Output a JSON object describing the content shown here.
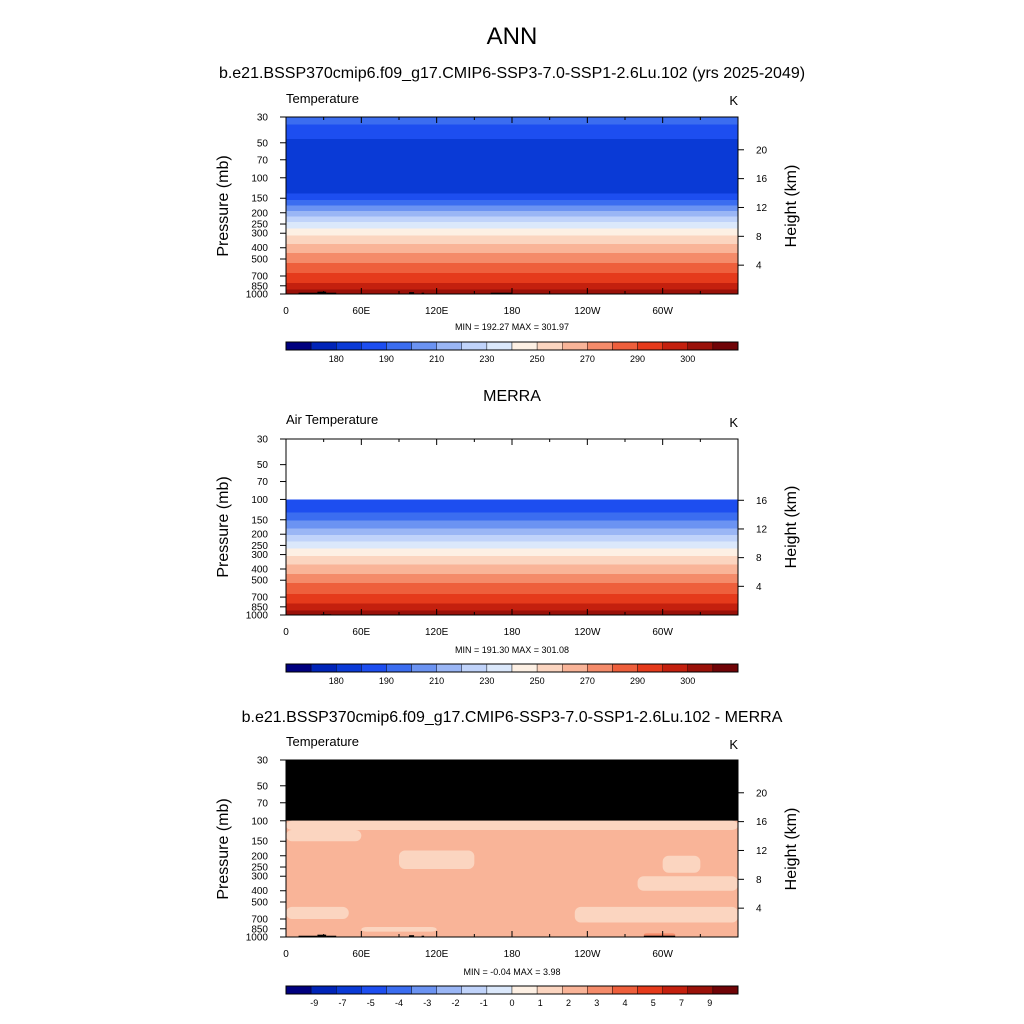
{
  "page": {
    "title": "ANN"
  },
  "colors": {
    "palette": [
      "#00007f",
      "#0024b8",
      "#0a3ad6",
      "#1d4ef0",
      "#3b6df0",
      "#6b93f2",
      "#9ab6f5",
      "#c0d3fa",
      "#dbe8fb",
      "#fdf0e4",
      "#fbd5c0",
      "#f9b498",
      "#f48b6a",
      "#ee5f3c",
      "#e53a1b",
      "#c4200e",
      "#9a1109",
      "#700407"
    ],
    "masked": "#000000",
    "axis": "#000000"
  },
  "chart_data": [
    {
      "type": "contour",
      "panel_title": "b.e21.BSSP370cmip6.f09_g17.CMIP6-SSP3-7.0-SSP1-2.6Lu.102 (yrs 2025-2049)",
      "left_label": "Temperature",
      "units": "K",
      "ylabel": "Pressure (mb)",
      "ylabel2": "Height (km)",
      "x_ticks": [
        "0",
        "60E",
        "120E",
        "180",
        "120W",
        "60W"
      ],
      "x_range": [
        0,
        360
      ],
      "p_ticks": [
        "30",
        "50",
        "70",
        "100",
        "150",
        "200",
        "250",
        "300",
        "400",
        "500",
        "700",
        "850",
        "1000"
      ],
      "p_range": [
        30,
        1000
      ],
      "height_ticks": [
        "4",
        "8",
        "12",
        "16",
        "20"
      ],
      "data_top": 30,
      "stats": "MIN = 192.27  MAX = 301.97",
      "level_profile": [
        {
          "p": 30,
          "lev": 4
        },
        {
          "p": 40,
          "lev": 3
        },
        {
          "p": 55,
          "lev": 2
        },
        {
          "p": 125,
          "lev": 2
        },
        {
          "p": 145,
          "lev": 3
        },
        {
          "p": 165,
          "lev": 4
        },
        {
          "p": 185,
          "lev": 5
        },
        {
          "p": 205,
          "lev": 6
        },
        {
          "p": 225,
          "lev": 7
        },
        {
          "p": 255,
          "lev": 8
        },
        {
          "p": 290,
          "lev": 9
        },
        {
          "p": 340,
          "lev": 10
        },
        {
          "p": 410,
          "lev": 11
        },
        {
          "p": 490,
          "lev": 12
        },
        {
          "p": 600,
          "lev": 13
        },
        {
          "p": 740,
          "lev": 14
        },
        {
          "p": 880,
          "lev": 15
        },
        {
          "p": 960,
          "lev": 16
        },
        {
          "p": 1000,
          "lev": 16
        }
      ],
      "terrain": [
        [
          10,
          25,
          975
        ],
        [
          25,
          32,
          955
        ],
        [
          32,
          40,
          975
        ],
        [
          98,
          102,
          965
        ],
        [
          108,
          110,
          975
        ],
        [
          163,
          180,
          975
        ]
      ],
      "colorbar_labels": [
        "180",
        "190",
        "210",
        "230",
        "250",
        "270",
        "290",
        "300"
      ]
    },
    {
      "type": "contour",
      "panel_title": "MERRA",
      "left_label": "Air Temperature",
      "units": "K",
      "ylabel": "Pressure (mb)",
      "ylabel2": "Height (km)",
      "x_ticks": [
        "0",
        "60E",
        "120E",
        "180",
        "120W",
        "60W"
      ],
      "x_range": [
        0,
        360
      ],
      "p_ticks": [
        "30",
        "50",
        "70",
        "100",
        "150",
        "200",
        "250",
        "300",
        "400",
        "500",
        "700",
        "850",
        "1000"
      ],
      "p_range": [
        30,
        1000
      ],
      "height_ticks": [
        "4",
        "8",
        "12",
        "16"
      ],
      "data_top": 100,
      "stats": "MIN = 191.30  MAX = 301.08",
      "level_profile": [
        {
          "p": 100,
          "lev": 3
        },
        {
          "p": 120,
          "lev": 3
        },
        {
          "p": 140,
          "lev": 4
        },
        {
          "p": 165,
          "lev": 5
        },
        {
          "p": 190,
          "lev": 6
        },
        {
          "p": 215,
          "lev": 7
        },
        {
          "p": 245,
          "lev": 8
        },
        {
          "p": 285,
          "lev": 9
        },
        {
          "p": 335,
          "lev": 10
        },
        {
          "p": 400,
          "lev": 11
        },
        {
          "p": 480,
          "lev": 12
        },
        {
          "p": 590,
          "lev": 13
        },
        {
          "p": 730,
          "lev": 14
        },
        {
          "p": 870,
          "lev": 15
        },
        {
          "p": 960,
          "lev": 16
        },
        {
          "p": 1000,
          "lev": 16
        }
      ],
      "terrain": [
        [
          15,
          28,
          990
        ],
        [
          28,
          36,
          985
        ]
      ],
      "colorbar_labels": [
        "180",
        "190",
        "210",
        "230",
        "250",
        "270",
        "290",
        "300"
      ]
    },
    {
      "type": "contour",
      "panel_title": "b.e21.BSSP370cmip6.f09_g17.CMIP6-SSP3-7.0-SSP1-2.6Lu.102 - MERRA",
      "left_label": "Temperature",
      "units": "K",
      "ylabel": "Pressure (mb)",
      "ylabel2": "Height (km)",
      "x_ticks": [
        "0",
        "60E",
        "120E",
        "180",
        "120W",
        "60W"
      ],
      "x_range": [
        0,
        360
      ],
      "p_ticks": [
        "30",
        "50",
        "70",
        "100",
        "150",
        "200",
        "250",
        "300",
        "400",
        "500",
        "700",
        "850",
        "1000"
      ],
      "p_range": [
        30,
        1000
      ],
      "height_ticks": [
        "4",
        "8",
        "12",
        "16",
        "20"
      ],
      "data_top": 100,
      "missing_above": 100,
      "stats": "MIN =  -0.04  MAX =   3.98",
      "background_level": 11,
      "light_level": 10,
      "light_bands": [
        [
          100,
          120,
          0,
          360
        ],
        [
          120,
          150,
          0,
          60
        ],
        [
          180,
          260,
          90,
          150
        ],
        [
          200,
          280,
          300,
          330
        ],
        [
          300,
          400,
          280,
          360
        ],
        [
          550,
          700,
          0,
          50
        ],
        [
          550,
          750,
          230,
          360
        ],
        [
          820,
          900,
          60,
          120
        ]
      ],
      "warm_patches": [
        [
          930,
          990,
          285,
          310
        ]
      ],
      "terrain": [
        [
          10,
          25,
          975
        ],
        [
          25,
          32,
          955
        ],
        [
          32,
          40,
          975
        ],
        [
          98,
          102,
          965
        ],
        [
          108,
          110,
          975
        ],
        [
          285,
          310,
          975
        ]
      ],
      "colorbar_labels": [
        "-9",
        "-7",
        "-5",
        "-4",
        "-3",
        "-2",
        "-1",
        "0",
        "1",
        "2",
        "3",
        "4",
        "5",
        "7",
        "9"
      ]
    }
  ]
}
